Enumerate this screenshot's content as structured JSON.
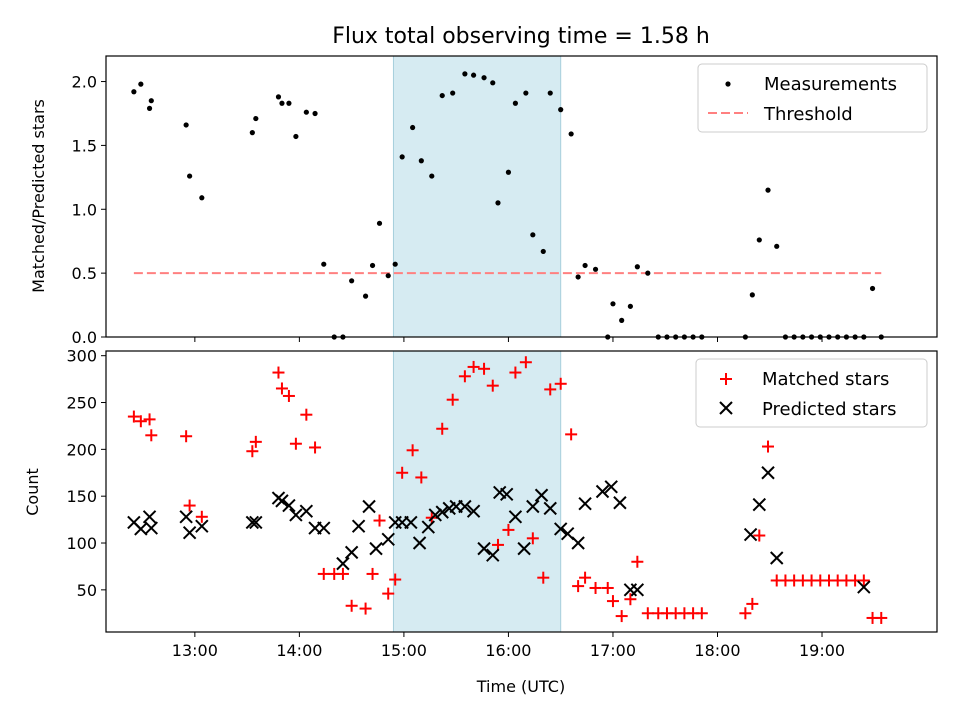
{
  "chart_data": [
    {
      "type": "scatter",
      "title": "Flux total observing time = 1.58 h",
      "xlabel": "",
      "ylabel": "Matched/Predicted stars",
      "xlim": [
        "12:09",
        "20:06"
      ],
      "ylim": [
        0,
        2.2
      ],
      "yticks": [
        "0.0",
        "0.5",
        "1.0",
        "1.5",
        "2.0"
      ],
      "highlight_span": {
        "x_start": "14:54",
        "x_end": "16:30"
      },
      "legend_position": "top-right",
      "series": [
        {
          "name": "Measurements",
          "marker": "dot",
          "color": "#000000",
          "x": [
            "12:25",
            "12:29",
            "12:34",
            "12:35",
            "12:55",
            "12:57",
            "13:04",
            "13:33",
            "13:35",
            "13:48",
            "13:50",
            "13:54",
            "13:58",
            "14:04",
            "14:09",
            "14:14",
            "14:20",
            "14:25",
            "14:30",
            "14:38",
            "14:42",
            "14:46",
            "14:51",
            "14:55",
            "14:59",
            "15:05",
            "15:10",
            "15:16",
            "15:22",
            "15:28",
            "15:35",
            "15:40",
            "15:46",
            "15:51",
            "15:54",
            "16:00",
            "16:04",
            "16:10",
            "16:14",
            "16:20",
            "16:24",
            "16:30",
            "16:36",
            "16:40",
            "16:44",
            "16:50",
            "16:57",
            "17:00",
            "17:05",
            "17:10",
            "17:14",
            "17:20",
            "17:26",
            "17:31",
            "17:36",
            "17:41",
            "17:46",
            "17:51",
            "18:16",
            "18:20",
            "18:24",
            "18:29",
            "18:34",
            "18:39",
            "18:44",
            "18:49",
            "18:54",
            "18:59",
            "19:04",
            "19:09",
            "19:14",
            "19:19",
            "19:24",
            "19:29",
            "19:34"
          ],
          "y": [
            1.92,
            1.98,
            1.79,
            1.85,
            1.66,
            1.26,
            1.09,
            1.6,
            1.71,
            1.88,
            1.83,
            1.83,
            1.57,
            1.76,
            1.75,
            0.57,
            0.0,
            0.0,
            0.44,
            0.32,
            0.56,
            0.89,
            0.48,
            0.57,
            1.41,
            1.64,
            1.38,
            1.26,
            1.89,
            1.91,
            2.06,
            2.05,
            2.03,
            1.99,
            1.05,
            1.29,
            1.83,
            1.91,
            0.8,
            0.67,
            1.91,
            1.78,
            1.59,
            0.47,
            0.56,
            0.53,
            0.0,
            0.26,
            0.13,
            0.24,
            0.55,
            0.5,
            0.0,
            0.0,
            0.0,
            0.0,
            0.0,
            0.0,
            0.0,
            0.33,
            0.76,
            1.15,
            0.71,
            0.0,
            0.0,
            0.0,
            0.0,
            0.0,
            0.0,
            0.0,
            0.0,
            0.0,
            0.0,
            0.38,
            0.0
          ]
        },
        {
          "name": "Threshold",
          "marker": "dashed-line",
          "color": "#ff8080",
          "x": [
            "12:25",
            "19:34"
          ],
          "y": [
            0.5,
            0.5
          ]
        }
      ]
    },
    {
      "type": "scatter",
      "title": "",
      "xlabel": "Time (UTC)",
      "ylabel": "Count",
      "xlim": [
        "12:09",
        "20:06"
      ],
      "ylim": [
        5,
        305
      ],
      "xticks": [
        "13:00",
        "14:00",
        "15:00",
        "16:00",
        "17:00",
        "18:00",
        "19:00"
      ],
      "yticks": [
        "50",
        "100",
        "150",
        "200",
        "250",
        "300"
      ],
      "highlight_span": {
        "x_start": "14:54",
        "x_end": "16:30"
      },
      "legend_position": "top-right",
      "series": [
        {
          "name": "Matched stars",
          "marker": "plus",
          "color": "#ff0000",
          "x": [
            "12:25",
            "12:29",
            "12:34",
            "12:35",
            "12:55",
            "12:57",
            "13:04",
            "13:33",
            "13:35",
            "13:48",
            "13:50",
            "13:54",
            "13:58",
            "14:04",
            "14:09",
            "14:14",
            "14:20",
            "14:25",
            "14:30",
            "14:38",
            "14:42",
            "14:46",
            "14:51",
            "14:55",
            "14:59",
            "15:05",
            "15:10",
            "15:16",
            "15:22",
            "15:28",
            "15:35",
            "15:40",
            "15:46",
            "15:51",
            "15:54",
            "16:00",
            "16:04",
            "16:10",
            "16:14",
            "16:20",
            "16:24",
            "16:30",
            "16:36",
            "16:40",
            "16:44",
            "16:50",
            "16:57",
            "17:00",
            "17:05",
            "17:10",
            "17:14",
            "17:20",
            "17:26",
            "17:31",
            "17:36",
            "17:41",
            "17:46",
            "17:51",
            "18:16",
            "18:20",
            "18:24",
            "18:29",
            "18:34",
            "18:39",
            "18:44",
            "18:49",
            "18:54",
            "18:59",
            "19:04",
            "19:09",
            "19:14",
            "19:19",
            "19:24",
            "19:29",
            "19:34"
          ],
          "y": [
            235,
            230,
            232,
            215,
            214,
            140,
            128,
            198,
            208,
            282,
            265,
            257,
            206,
            237,
            202,
            67,
            67,
            67,
            33,
            30,
            67,
            124,
            46,
            61,
            175,
            199,
            170,
            127,
            222,
            253,
            278,
            288,
            286,
            268,
            98,
            114,
            282,
            293,
            105,
            63,
            264,
            270,
            216,
            54,
            63,
            52,
            52,
            38,
            22,
            40,
            80,
            25,
            25,
            25,
            25,
            25,
            25,
            25,
            25,
            35,
            108,
            203,
            60,
            60,
            60,
            60,
            60,
            60,
            60,
            60,
            60,
            60,
            60,
            20,
            20
          ]
        },
        {
          "name": "Predicted stars",
          "marker": "x",
          "color": "#000000",
          "x": [
            "12:25",
            "12:29",
            "12:34",
            "12:35",
            "12:55",
            "12:57",
            "13:04",
            "13:33",
            "13:35",
            "13:48",
            "13:50",
            "13:54",
            "13:58",
            "14:04",
            "14:09",
            "14:14",
            "14:25",
            "14:30",
            "14:34",
            "14:40",
            "14:44",
            "14:51",
            "14:55",
            "14:59",
            "15:04",
            "15:09",
            "15:14",
            "15:18",
            "15:22",
            "15:26",
            "15:30",
            "15:35",
            "15:40",
            "15:46",
            "15:51",
            "15:55",
            "15:59",
            "16:04",
            "16:09",
            "16:14",
            "16:19",
            "16:24",
            "16:30",
            "16:34",
            "16:40",
            "16:44",
            "16:54",
            "16:59",
            "17:04",
            "17:10",
            "17:14",
            "18:19",
            "18:24",
            "18:29",
            "18:34",
            "19:24"
          ],
          "y": [
            122,
            115,
            128,
            116,
            128,
            111,
            118,
            122,
            122,
            148,
            145,
            140,
            130,
            134,
            116,
            116,
            78,
            90,
            118,
            139,
            94,
            104,
            122,
            122,
            122,
            100,
            117,
            130,
            133,
            137,
            139,
            139,
            134,
            94,
            87,
            154,
            152,
            128,
            94,
            139,
            151,
            137,
            115,
            110,
            100,
            142,
            155,
            160,
            143,
            50,
            50,
            109,
            141,
            175,
            84,
            53
          ]
        }
      ]
    }
  ]
}
